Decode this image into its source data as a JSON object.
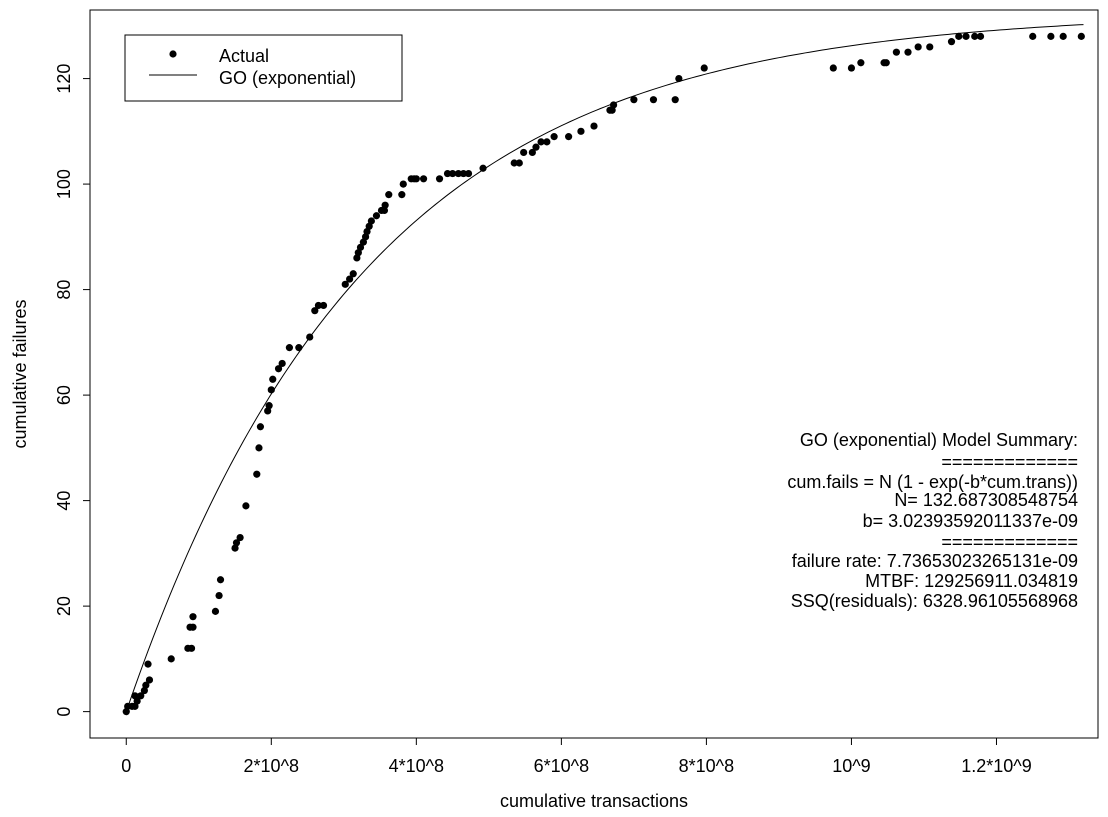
{
  "chart_data": {
    "type": "scatter",
    "xlabel": "cumulative transactions",
    "ylabel": "cumulative failures",
    "xlim": [
      -50000000,
      1340000000
    ],
    "ylim": [
      -5,
      133
    ],
    "x_ticks": [
      {
        "value": 0,
        "label": "0"
      },
      {
        "value": 200000000,
        "label": "2*10^8"
      },
      {
        "value": 400000000,
        "label": "4*10^8"
      },
      {
        "value": 600000000,
        "label": "6*10^8"
      },
      {
        "value": 800000000,
        "label": "8*10^8"
      },
      {
        "value": 1000000000,
        "label": "10^9"
      },
      {
        "value": 1200000000,
        "label": "1.2*10^9"
      }
    ],
    "y_ticks": [
      {
        "value": 0,
        "label": "0"
      },
      {
        "value": 20,
        "label": "20"
      },
      {
        "value": 40,
        "label": "40"
      },
      {
        "value": 60,
        "label": "60"
      },
      {
        "value": 80,
        "label": "80"
      },
      {
        "value": 100,
        "label": "100"
      },
      {
        "value": 120,
        "label": "120"
      }
    ],
    "legend": {
      "placement": "top-left",
      "entries": [
        {
          "label": "Actual",
          "symbol": "point"
        },
        {
          "label": "GO (exponential)",
          "symbol": "line"
        }
      ]
    },
    "series": [
      {
        "name": "Actual",
        "kind": "points",
        "color": "#000000",
        "points": [
          [
            0,
            0
          ],
          [
            2000000,
            1
          ],
          [
            8000000,
            1
          ],
          [
            12000000,
            1
          ],
          [
            15000000,
            2
          ],
          [
            12000000,
            3
          ],
          [
            20000000,
            3
          ],
          [
            25000000,
            4
          ],
          [
            27000000,
            5
          ],
          [
            32000000,
            6
          ],
          [
            30000000,
            9
          ],
          [
            62000000,
            10
          ],
          [
            85000000,
            12
          ],
          [
            90000000,
            12
          ],
          [
            88000000,
            16
          ],
          [
            92000000,
            16
          ],
          [
            92000000,
            18
          ],
          [
            123000000,
            19
          ],
          [
            128000000,
            22
          ],
          [
            130000000,
            25
          ],
          [
            150000000,
            31
          ],
          [
            152000000,
            32
          ],
          [
            157000000,
            33
          ],
          [
            165000000,
            39
          ],
          [
            180000000,
            45
          ],
          [
            183000000,
            50
          ],
          [
            185000000,
            54
          ],
          [
            195000000,
            57
          ],
          [
            197000000,
            58
          ],
          [
            200000000,
            61
          ],
          [
            202000000,
            63
          ],
          [
            210000000,
            65
          ],
          [
            215000000,
            66
          ],
          [
            225000000,
            69
          ],
          [
            238000000,
            69
          ],
          [
            253000000,
            71
          ],
          [
            260000000,
            76
          ],
          [
            265000000,
            77
          ],
          [
            272000000,
            77
          ],
          [
            302000000,
            81
          ],
          [
            308000000,
            82
          ],
          [
            313000000,
            83
          ],
          [
            318000000,
            86
          ],
          [
            320000000,
            87
          ],
          [
            323000000,
            88
          ],
          [
            327000000,
            89
          ],
          [
            330000000,
            90
          ],
          [
            332000000,
            91
          ],
          [
            335000000,
            92
          ],
          [
            338000000,
            93
          ],
          [
            345000000,
            94
          ],
          [
            352000000,
            95
          ],
          [
            356000000,
            95
          ],
          [
            357000000,
            96
          ],
          [
            362000000,
            98
          ],
          [
            380000000,
            98
          ],
          [
            382000000,
            100
          ],
          [
            393000000,
            101
          ],
          [
            397000000,
            101
          ],
          [
            400000000,
            101
          ],
          [
            410000000,
            101
          ],
          [
            432000000,
            101
          ],
          [
            443000000,
            102
          ],
          [
            450000000,
            102
          ],
          [
            458000000,
            102
          ],
          [
            465000000,
            102
          ],
          [
            472000000,
            102
          ],
          [
            492000000,
            103
          ],
          [
            535000000,
            104
          ],
          [
            542000000,
            104
          ],
          [
            548000000,
            106
          ],
          [
            560000000,
            106
          ],
          [
            565000000,
            107
          ],
          [
            572000000,
            108
          ],
          [
            580000000,
            108
          ],
          [
            590000000,
            109
          ],
          [
            610000000,
            109
          ],
          [
            627000000,
            110
          ],
          [
            645000000,
            111
          ],
          [
            667000000,
            114
          ],
          [
            670000000,
            114
          ],
          [
            672000000,
            115
          ],
          [
            700000000,
            116
          ],
          [
            727000000,
            116
          ],
          [
            757000000,
            116
          ],
          [
            762000000,
            120
          ],
          [
            797000000,
            122
          ],
          [
            975000000,
            122
          ],
          [
            1000000000,
            122
          ],
          [
            1013000000,
            123
          ],
          [
            1045000000,
            123
          ],
          [
            1048000000,
            123
          ],
          [
            1062000000,
            125
          ],
          [
            1078000000,
            125
          ],
          [
            1092000000,
            126
          ],
          [
            1108000000,
            126
          ],
          [
            1138000000,
            127
          ],
          [
            1148000000,
            128
          ],
          [
            1158000000,
            128
          ],
          [
            1170000000,
            128
          ],
          [
            1178000000,
            128
          ],
          [
            1250000000,
            128
          ],
          [
            1275000000,
            128
          ],
          [
            1292000000,
            128
          ],
          [
            1317000000,
            128
          ]
        ]
      },
      {
        "name": "GO (exponential)",
        "kind": "line",
        "color": "#000000",
        "model": {
          "N": 132.687308548754,
          "b": 3.02393592011337e-09
        },
        "x_range": [
          0,
          1320000000
        ]
      }
    ],
    "annotations": [
      "GO (exponential) Model Summary:",
      "=============",
      "cum.fails = N (1 - exp(-b*cum.trans))",
      "N= 132.687308548754",
      "b= 3.02393592011337e-09",
      "=============",
      "failure rate: 7.73653023265131e-09",
      "MTBF: 129256911.034819",
      "SSQ(residuals): 6328.96105568968"
    ]
  }
}
